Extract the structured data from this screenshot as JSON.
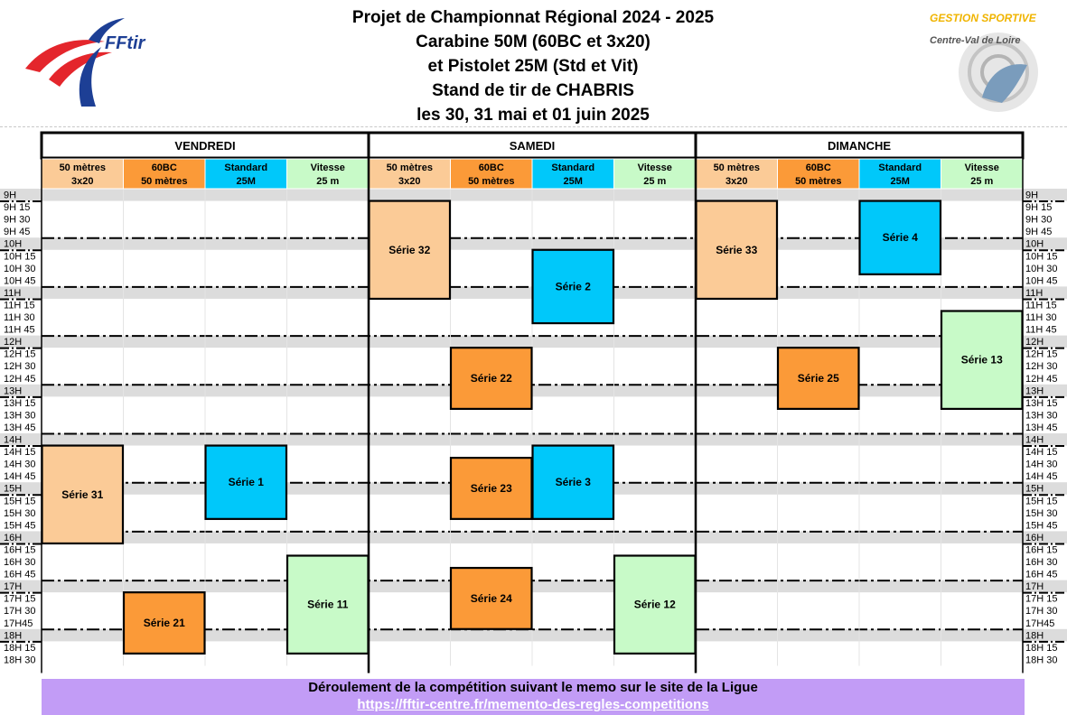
{
  "title": {
    "line1": "Projet de Championnat Régional 2024 - 2025",
    "line2": "Carabine 50M (60BC et 3x20)",
    "line3": "et Pistolet 25M (Std et Vit)",
    "line4": "Stand de tir de CHABRIS",
    "line5": "les 30, 31 mai et 01 juin 2025"
  },
  "logos": {
    "left": {
      "text": "FFtir",
      "colors": {
        "red": "#e4262c",
        "blue": "#1d3f95"
      }
    },
    "right": {
      "line1": "GESTION SPORTIVE",
      "line2": "Centre-Val de Loire"
    }
  },
  "days": [
    "VENDREDI",
    "SAMEDI",
    "DIMANCHE"
  ],
  "columns": [
    {
      "l1": "50 mètres",
      "l2": "3x20",
      "color": "#fbcb97"
    },
    {
      "l1": "60BC",
      "l2": "50 mètres",
      "color": "#fb9a38"
    },
    {
      "l1": "Standard",
      "l2": "25M",
      "color": "#00c8fa"
    },
    {
      "l1": "Vitesse",
      "l2": "25 m",
      "color": "#c8fac8"
    }
  ],
  "times": [
    "9H",
    "9H 15",
    "9H 30",
    "9H 45",
    "10H",
    "10H 15",
    "10H 30",
    "10H 45",
    "11H",
    "11H 15",
    "11H 30",
    "11H 45",
    "12H",
    "12H 15",
    "12H 30",
    "12H 45",
    "13H",
    "13H 15",
    "13H 30",
    "13H 45",
    "14H",
    "14H 15",
    "14H 30",
    "14H 45",
    "15H",
    "15H 15",
    "15H 30",
    "15H 45",
    "16H",
    "16H 15",
    "16H 30",
    "16H 45",
    "17H",
    "17H 15",
    "17H 30",
    "17H45",
    "18H",
    "18H 15",
    "18H 30"
  ],
  "series": [
    {
      "label": "Série 31",
      "day": 0,
      "col": 0,
      "start": 21,
      "end": 29
    },
    {
      "label": "Série 1",
      "day": 0,
      "col": 2,
      "start": 21,
      "end": 27
    },
    {
      "label": "Série 21",
      "day": 0,
      "col": 1,
      "start": 33,
      "end": 38
    },
    {
      "label": "Série 11",
      "day": 0,
      "col": 3,
      "start": 30,
      "end": 38
    },
    {
      "label": "Série 32",
      "day": 1,
      "col": 0,
      "start": 1,
      "end": 9
    },
    {
      "label": "Série 2",
      "day": 1,
      "col": 2,
      "start": 5,
      "end": 11
    },
    {
      "label": "Série 22",
      "day": 1,
      "col": 1,
      "start": 13,
      "end": 18
    },
    {
      "label": "Série 23",
      "day": 1,
      "col": 1,
      "start": 22,
      "end": 27
    },
    {
      "label": "Série 3",
      "day": 1,
      "col": 2,
      "start": 21,
      "end": 27
    },
    {
      "label": "Série 24",
      "day": 1,
      "col": 1,
      "start": 31,
      "end": 36
    },
    {
      "label": "Série 12",
      "day": 1,
      "col": 3,
      "start": 30,
      "end": 38
    },
    {
      "label": "Série 33",
      "day": 2,
      "col": 0,
      "start": 1,
      "end": 9
    },
    {
      "label": "Série 4",
      "day": 2,
      "col": 2,
      "start": 1,
      "end": 7
    },
    {
      "label": "Série 13",
      "day": 2,
      "col": 3,
      "start": 10,
      "end": 18
    },
    {
      "label": "Série 25",
      "day": 2,
      "col": 1,
      "start": 13,
      "end": 18
    }
  ],
  "footer": {
    "line1": "Déroulement de la compétition suivant le memo sur le site de la Ligue",
    "link": "https://fftir-centre.fr/memento-des-regles-competitions"
  },
  "colors": {
    "hour_band": "#dcdcdc",
    "border": "#000000",
    "footer_bg": "#c29cf6"
  }
}
